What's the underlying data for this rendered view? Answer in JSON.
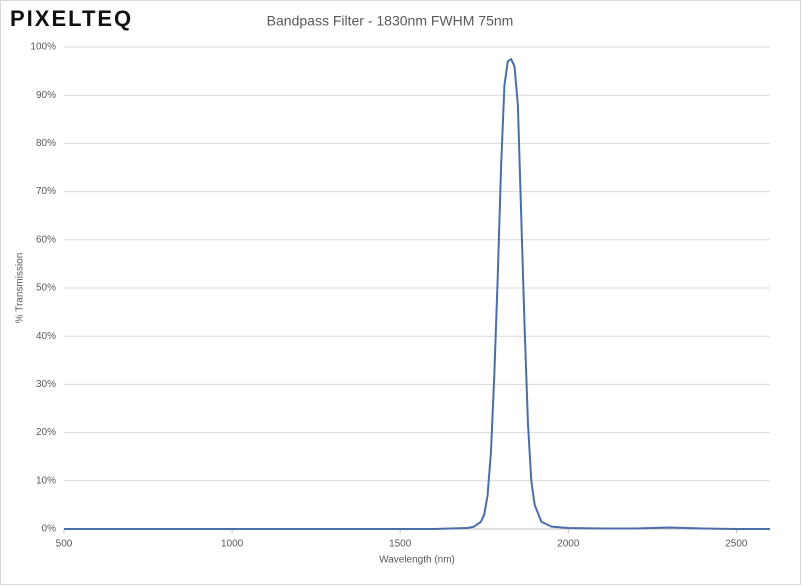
{
  "chart_data": {
    "type": "line",
    "logo": "PIXELTEQ",
    "title": "Bandpass Filter - 1830nm FWHM 75nm",
    "x_label": "Wavelength (nm)",
    "y_label": "% Transmission",
    "x": [
      500,
      600,
      700,
      800,
      900,
      1000,
      1100,
      1200,
      1300,
      1400,
      1500,
      1600,
      1700,
      1720,
      1740,
      1750,
      1760,
      1770,
      1780,
      1790,
      1800,
      1810,
      1820,
      1830,
      1840,
      1850,
      1860,
      1870,
      1880,
      1890,
      1900,
      1920,
      1950,
      2000,
      2100,
      2200,
      2300,
      2400,
      2500,
      2600
    ],
    "values": [
      0,
      0,
      0,
      0,
      0,
      0,
      0,
      0,
      0,
      0,
      0,
      0,
      0.2,
      0.5,
      1.5,
      3,
      7,
      16,
      32,
      52,
      75,
      92,
      97,
      97.5,
      96,
      88,
      65,
      42,
      22,
      10,
      5,
      1.5,
      0.5,
      0.2,
      0.1,
      0.1,
      0.3,
      0.1,
      0,
      0
    ],
    "color": "#4a6fa8",
    "xlim": [
      500,
      2600
    ],
    "xticks": [
      500,
      1000,
      1500,
      2000,
      2500
    ],
    "ylim": [
      0,
      100
    ],
    "yticks": [
      {
        "value": 0,
        "label": "0%"
      },
      {
        "value": 10,
        "label": "10%"
      },
      {
        "value": 20,
        "label": "20%"
      },
      {
        "value": 30,
        "label": "30%"
      },
      {
        "value": 40,
        "label": "40%"
      },
      {
        "value": 50,
        "label": "50%"
      },
      {
        "value": 60,
        "label": "60%"
      },
      {
        "value": 70,
        "label": "70%"
      },
      {
        "value": 80,
        "label": "80%"
      },
      {
        "value": 90,
        "label": "90%"
      },
      {
        "value": 100,
        "label": "100%"
      }
    ],
    "grid": true
  }
}
